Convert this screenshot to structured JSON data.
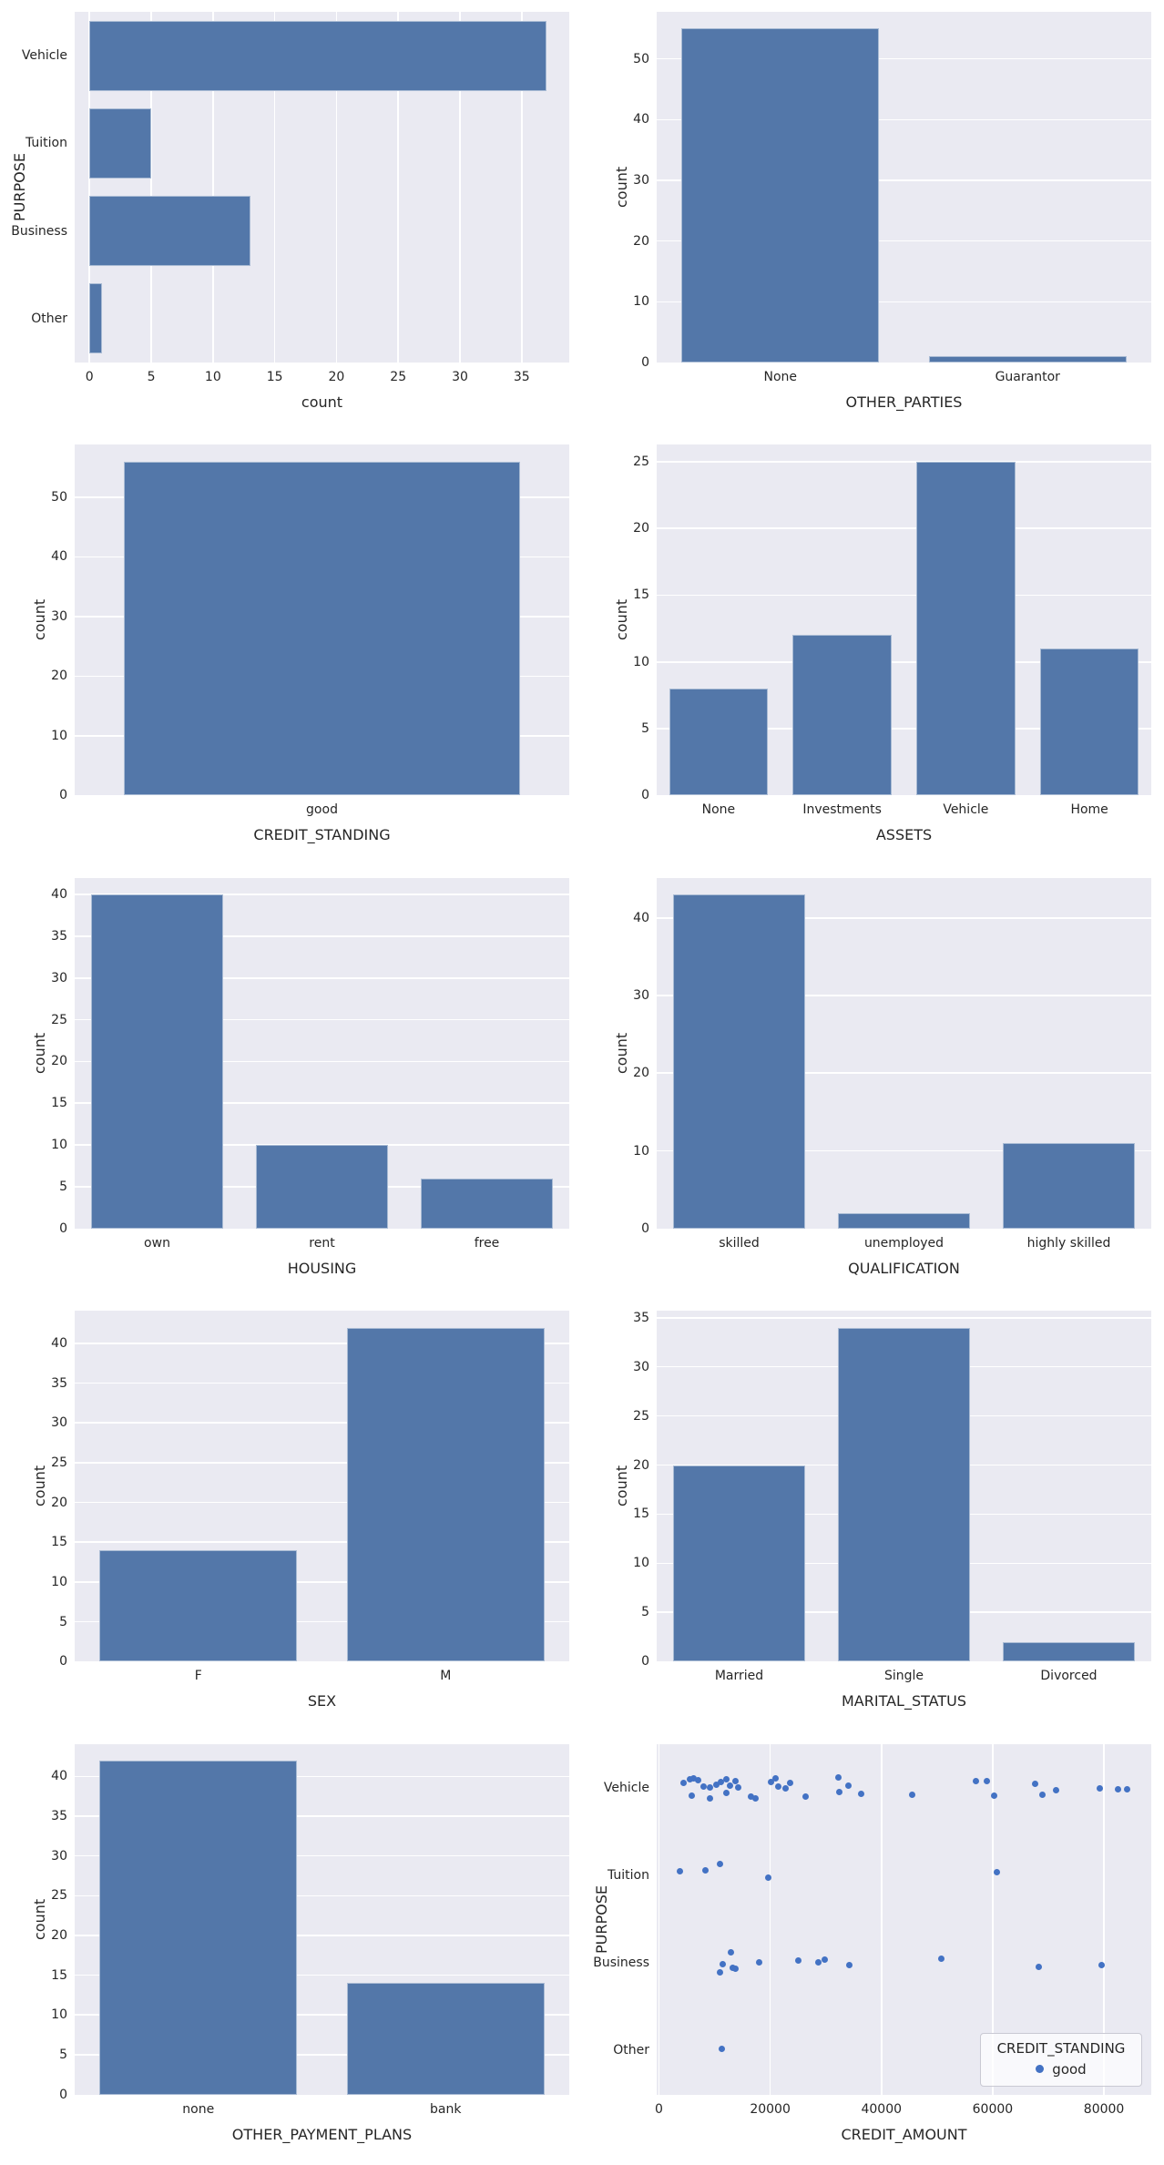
{
  "style": {
    "page_bg": "#ffffff",
    "plot_bg": "#eaeaf2",
    "grid_color": "#ffffff",
    "bar_color": "#5377a9",
    "point_color": "#4372c4",
    "text_color": "#262626"
  },
  "chart_data": [
    {
      "type": "barh",
      "ylabel": "PURPOSE",
      "xlabel": "count",
      "categories": [
        "Vehicle",
        "Tuition",
        "Business",
        "Other"
      ],
      "values": [
        37,
        5,
        13,
        1
      ],
      "xticks": [
        0,
        5,
        10,
        15,
        20,
        25,
        30,
        35
      ],
      "xlim": [
        -1.2,
        38.85
      ],
      "grid": true
    },
    {
      "type": "bar",
      "ylabel": "count",
      "xlabel": "OTHER_PARTIES",
      "categories": [
        "None",
        "Guarantor"
      ],
      "values": [
        55,
        1
      ],
      "yticks": [
        0,
        10,
        20,
        30,
        40,
        50
      ],
      "ylim": [
        0,
        57.75
      ],
      "grid": true
    },
    {
      "type": "bar",
      "ylabel": "count",
      "xlabel": "CREDIT_STANDING",
      "categories": [
        "good"
      ],
      "values": [
        56
      ],
      "yticks": [
        0,
        10,
        20,
        30,
        40,
        50
      ],
      "ylim": [
        0,
        58.8
      ],
      "grid": true
    },
    {
      "type": "bar",
      "ylabel": "count",
      "xlabel": "ASSETS",
      "categories": [
        "None",
        "Investments",
        "Vehicle",
        "Home"
      ],
      "values": [
        8,
        12,
        25,
        11
      ],
      "yticks": [
        0,
        5,
        10,
        15,
        20,
        25
      ],
      "ylim": [
        0,
        26.25
      ],
      "grid": true
    },
    {
      "type": "bar",
      "ylabel": "count",
      "xlabel": "HOUSING",
      "categories": [
        "own",
        "rent",
        "free"
      ],
      "values": [
        40,
        10,
        6
      ],
      "yticks": [
        0,
        5,
        10,
        15,
        20,
        25,
        30,
        35,
        40
      ],
      "ylim": [
        0,
        42
      ],
      "grid": true
    },
    {
      "type": "bar",
      "ylabel": "count",
      "xlabel": "QUALIFICATION",
      "categories": [
        "skilled",
        "unemployed",
        "highly skilled"
      ],
      "values": [
        43,
        2,
        11
      ],
      "yticks": [
        0,
        10,
        20,
        30,
        40
      ],
      "ylim": [
        0,
        45.15
      ],
      "grid": true
    },
    {
      "type": "bar",
      "ylabel": "count",
      "xlabel": "SEX",
      "categories": [
        "F",
        "M"
      ],
      "values": [
        14,
        42
      ],
      "yticks": [
        0,
        5,
        10,
        15,
        20,
        25,
        30,
        35,
        40
      ],
      "ylim": [
        0,
        44.1
      ],
      "grid": true
    },
    {
      "type": "bar",
      "ylabel": "count",
      "xlabel": "MARITAL_STATUS",
      "categories": [
        "Married",
        "Single",
        "Divorced"
      ],
      "values": [
        20,
        34,
        2
      ],
      "yticks": [
        0,
        5,
        10,
        15,
        20,
        25,
        30,
        35
      ],
      "ylim": [
        0,
        35.7
      ],
      "grid": true
    },
    {
      "type": "bar",
      "ylabel": "count",
      "xlabel": "OTHER_PAYMENT_PLANS",
      "categories": [
        "none",
        "bank"
      ],
      "values": [
        42,
        14
      ],
      "yticks": [
        0,
        5,
        10,
        15,
        20,
        25,
        30,
        35,
        40
      ],
      "ylim": [
        0,
        44.1
      ],
      "grid": true
    },
    {
      "type": "scatter",
      "ylabel": "PURPOSE",
      "xlabel": "CREDIT_AMOUNT",
      "categories": [
        "Vehicle",
        "Tuition",
        "Business",
        "Other"
      ],
      "xticks": [
        0,
        20000,
        40000,
        60000,
        80000
      ],
      "xlim": [
        -400,
        88500
      ],
      "grid": true,
      "legend": {
        "title": "CREDIT_STANDING",
        "items": [
          {
            "label": "good",
            "marker": "dot"
          }
        ]
      },
      "points_format": [
        "purpose",
        "credit_amount",
        "jitter"
      ],
      "points": [
        [
          "Vehicle",
          4500,
          -0.05
        ],
        [
          "Vehicle",
          5600,
          -0.1
        ],
        [
          "Vehicle",
          5900,
          0.09
        ],
        [
          "Vehicle",
          6300,
          -0.11
        ],
        [
          "Vehicle",
          7000,
          -0.09
        ],
        [
          "Vehicle",
          8000,
          -0.01
        ],
        [
          "Vehicle",
          9100,
          0.0
        ],
        [
          "Vehicle",
          9200,
          0.12
        ],
        [
          "Vehicle",
          10300,
          -0.03
        ],
        [
          "Vehicle",
          11200,
          -0.06
        ],
        [
          "Vehicle",
          12100,
          -0.1
        ],
        [
          "Vehicle",
          12200,
          0.06
        ],
        [
          "Vehicle",
          12800,
          -0.02
        ],
        [
          "Vehicle",
          13700,
          -0.07
        ],
        [
          "Vehicle",
          14200,
          0.0
        ],
        [
          "Vehicle",
          16500,
          0.1
        ],
        [
          "Vehicle",
          17400,
          0.12
        ],
        [
          "Vehicle",
          20200,
          -0.06
        ],
        [
          "Vehicle",
          21000,
          -0.11
        ],
        [
          "Vehicle",
          21500,
          -0.01
        ],
        [
          "Vehicle",
          22700,
          0.01
        ],
        [
          "Vehicle",
          23600,
          -0.05
        ],
        [
          "Vehicle",
          26300,
          0.1
        ],
        [
          "Vehicle",
          32200,
          -0.12
        ],
        [
          "Vehicle",
          32500,
          0.05
        ],
        [
          "Vehicle",
          34100,
          -0.02
        ],
        [
          "Vehicle",
          36300,
          0.07
        ],
        [
          "Vehicle",
          45500,
          0.08
        ],
        [
          "Vehicle",
          57000,
          -0.08
        ],
        [
          "Vehicle",
          59000,
          -0.07
        ],
        [
          "Vehicle",
          60300,
          0.09
        ],
        [
          "Vehicle",
          67600,
          -0.04
        ],
        [
          "Vehicle",
          68900,
          0.08
        ],
        [
          "Vehicle",
          71400,
          0.03
        ],
        [
          "Vehicle",
          79200,
          0.01
        ],
        [
          "Vehicle",
          82600,
          0.02
        ],
        [
          "Vehicle",
          84100,
          0.02
        ],
        [
          "Tuition",
          3700,
          -0.05
        ],
        [
          "Tuition",
          8300,
          -0.06
        ],
        [
          "Tuition",
          10900,
          -0.13
        ],
        [
          "Tuition",
          19600,
          0.03
        ],
        [
          "Tuition",
          60800,
          -0.04
        ],
        [
          "Business",
          10900,
          0.11
        ],
        [
          "Business",
          11500,
          0.01
        ],
        [
          "Business",
          12900,
          -0.12
        ],
        [
          "Business",
          13300,
          0.05
        ],
        [
          "Business",
          13700,
          0.07
        ],
        [
          "Business",
          18000,
          -0.01
        ],
        [
          "Business",
          25000,
          -0.03
        ],
        [
          "Business",
          28700,
          -0.01
        ],
        [
          "Business",
          29800,
          -0.04
        ],
        [
          "Business",
          34300,
          0.02
        ],
        [
          "Business",
          50800,
          -0.05
        ],
        [
          "Business",
          68200,
          0.04
        ],
        [
          "Business",
          79500,
          0.02
        ],
        [
          "Other",
          11300,
          -0.02
        ]
      ]
    }
  ]
}
